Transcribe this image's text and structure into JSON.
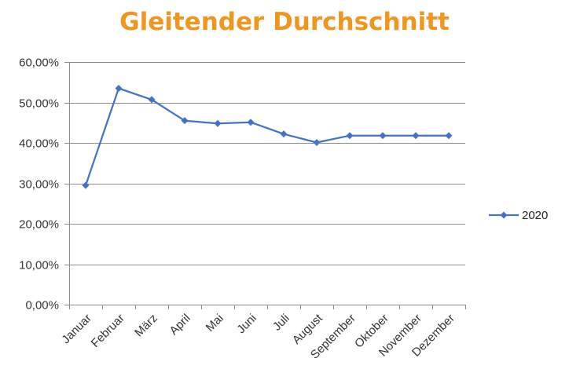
{
  "chart_data": {
    "type": "line",
    "title": "Gleitender Durchschnitt",
    "categories": [
      "Januar",
      "Februar",
      "März",
      "April",
      "Mai",
      "Juni",
      "Juli",
      "August",
      "September",
      "Oktober",
      "November",
      "Dezember"
    ],
    "series": [
      {
        "name": "2020",
        "color": "#4472C4",
        "marker": "diamond",
        "values": [
          0.295,
          0.535,
          0.507,
          0.455,
          0.448,
          0.451,
          0.422,
          0.401,
          0.418,
          0.418,
          0.418,
          0.418
        ]
      }
    ],
    "ylim": [
      0,
      0.6
    ],
    "yticks": [
      0,
      0.1,
      0.2,
      0.3,
      0.4,
      0.5,
      0.6
    ],
    "ytick_labels": [
      "0,00%",
      "10,00%",
      "20,00%",
      "30,00%",
      "40,00%",
      "50,00%",
      "60,00%"
    ],
    "grid": true,
    "legend_position": "right",
    "title_color": "#F0961E"
  }
}
